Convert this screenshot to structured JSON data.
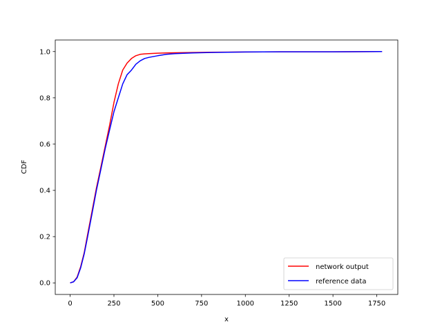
{
  "chart_data": {
    "type": "line",
    "title": "",
    "xlabel": "x",
    "ylabel": "CDF",
    "xlim": [
      -85,
      1870
    ],
    "ylim": [
      -0.05,
      1.05
    ],
    "x_ticks": [
      0,
      250,
      500,
      750,
      1000,
      1250,
      1500,
      1750
    ],
    "y_ticks": [
      0.0,
      0.2,
      0.4,
      0.6,
      0.8,
      1.0
    ],
    "x_tick_labels": [
      "0",
      "250",
      "500",
      "750",
      "1000",
      "1250",
      "1500",
      "1750"
    ],
    "y_tick_labels": [
      "0.0",
      "0.2",
      "0.4",
      "0.6",
      "0.8",
      "1.0"
    ],
    "grid": false,
    "legend_position": "lower-right",
    "series": [
      {
        "name": "network output",
        "color": "#ff0000",
        "x": [
          0,
          20,
          40,
          60,
          80,
          100,
          125,
          150,
          175,
          200,
          225,
          250,
          275,
          300,
          325,
          350,
          375,
          400,
          425,
          450,
          500,
          550,
          600,
          700,
          800,
          1000,
          1200,
          1500,
          1780
        ],
        "y": [
          0.0,
          0.005,
          0.025,
          0.07,
          0.13,
          0.21,
          0.31,
          0.41,
          0.5,
          0.59,
          0.68,
          0.78,
          0.86,
          0.92,
          0.95,
          0.97,
          0.982,
          0.988,
          0.99,
          0.991,
          0.993,
          0.994,
          0.995,
          0.996,
          0.997,
          0.998,
          0.999,
          0.999,
          1.0
        ]
      },
      {
        "name": "reference data",
        "color": "#0000ff",
        "x": [
          0,
          20,
          40,
          60,
          80,
          100,
          125,
          150,
          175,
          200,
          225,
          250,
          275,
          300,
          325,
          350,
          375,
          400,
          425,
          450,
          500,
          550,
          600,
          700,
          800,
          1000,
          1200,
          1500,
          1780
        ],
        "y": [
          0.0,
          0.005,
          0.022,
          0.065,
          0.125,
          0.2,
          0.3,
          0.4,
          0.49,
          0.58,
          0.66,
          0.74,
          0.8,
          0.86,
          0.9,
          0.92,
          0.945,
          0.96,
          0.97,
          0.975,
          0.982,
          0.988,
          0.991,
          0.994,
          0.996,
          0.998,
          0.999,
          0.999,
          1.0
        ]
      }
    ]
  }
}
